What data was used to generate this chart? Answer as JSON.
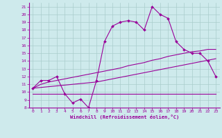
{
  "xlabel": "Windchill (Refroidissement éolien,°C)",
  "bg_color": "#ceeaec",
  "grid_color": "#aacccc",
  "line_color": "#990099",
  "x_hours": [
    0,
    1,
    2,
    3,
    4,
    5,
    6,
    7,
    8,
    9,
    10,
    11,
    12,
    13,
    14,
    15,
    16,
    17,
    18,
    19,
    20,
    21,
    22,
    23
  ],
  "line_main": [
    10.5,
    11.5,
    11.5,
    12.0,
    9.8,
    8.6,
    9.1,
    8.0,
    11.5,
    16.5,
    18.5,
    19.0,
    19.2,
    19.0,
    18.0,
    21.0,
    20.0,
    19.5,
    16.5,
    15.5,
    15.0,
    15.0,
    14.0,
    12.0
  ],
  "line_upper": [
    10.5,
    11.0,
    11.3,
    11.5,
    11.7,
    11.9,
    12.1,
    12.3,
    12.5,
    12.7,
    12.9,
    13.1,
    13.4,
    13.6,
    13.8,
    14.1,
    14.3,
    14.6,
    14.8,
    15.0,
    15.2,
    15.3,
    15.5,
    15.5
  ],
  "line_lower": [
    10.5,
    10.6,
    10.7,
    10.8,
    10.9,
    11.0,
    11.1,
    11.2,
    11.3,
    11.5,
    11.7,
    11.9,
    12.1,
    12.3,
    12.5,
    12.7,
    12.9,
    13.1,
    13.3,
    13.5,
    13.7,
    13.9,
    14.1,
    14.3
  ],
  "line_flat": [
    9.8,
    9.8,
    9.8,
    9.8,
    9.8,
    9.8,
    9.8,
    9.8,
    9.8,
    9.8,
    9.8,
    9.8,
    9.8,
    9.8,
    9.8,
    9.8,
    9.8,
    9.8,
    9.8,
    9.8,
    9.8,
    9.8,
    9.8,
    9.8
  ],
  "ylim": [
    8,
    21.5
  ],
  "xlim": [
    -0.5,
    23.5
  ],
  "yticks": [
    8,
    9,
    10,
    11,
    12,
    13,
    14,
    15,
    16,
    17,
    18,
    19,
    20,
    21
  ],
  "xticks": [
    0,
    1,
    2,
    3,
    4,
    5,
    6,
    7,
    8,
    9,
    10,
    11,
    12,
    13,
    14,
    15,
    16,
    17,
    18,
    19,
    20,
    21,
    22,
    23
  ]
}
